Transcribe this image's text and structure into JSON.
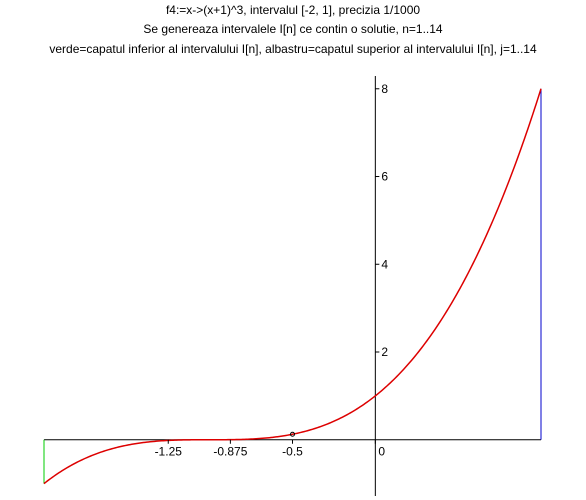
{
  "chart_data": {
    "type": "line",
    "title_lines": [
      "f4:=x->(x+1)^3, intervalul [-2, 1], precizia 1/1000",
      "Se genereaza intervalele I[n] ce contin o solutie, n=1..14",
      "verde=capatul inferior al intervalului I[n], albastru=capatul superior al intervalului I[n], j=1..14"
    ],
    "function": "(x+1)^3",
    "xlim": [
      -2,
      1
    ],
    "ylim": [
      -1.1,
      8.2
    ],
    "x_ticks": [
      -1.25,
      -0.875,
      -0.5,
      0
    ],
    "x_tick_labels": [
      "-1.25",
      "-0.875",
      "-0.5",
      "0"
    ],
    "y_ticks": [
      2,
      4,
      6,
      8
    ],
    "y_tick_labels": [
      "2",
      "4",
      "6",
      "8"
    ],
    "curve_color": "#dd0000",
    "lower_bound_color": "#00cc00",
    "upper_bound_color": "#0000cc",
    "lower_bounds": [
      -2
    ],
    "upper_bounds": [
      1
    ],
    "marker_points": [
      {
        "x": -0.5,
        "y": 0.125
      }
    ],
    "grid": false
  }
}
